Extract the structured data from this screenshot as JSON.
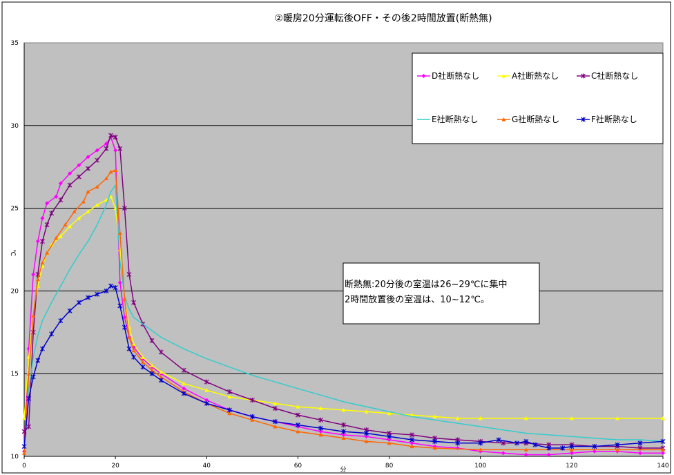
{
  "chart_data": {
    "type": "line",
    "title": "②暖房20分運転後OFF・その後2時間放置(断熱無)",
    "xlabel": "分",
    "ylabel": "℃",
    "xlim": [
      0,
      140
    ],
    "ylim": [
      10,
      35
    ],
    "xticks": [
      "0",
      "20",
      "40",
      "60",
      "80",
      "100",
      "120",
      "140"
    ],
    "yticks": [
      "10",
      "15",
      "20",
      "25",
      "30",
      "35"
    ],
    "grid": "horizontal",
    "legend_position": "top-right",
    "annotation": [
      "断熱無:20分後の室温は26~29℃に集中",
      "2時間放置後の室温は、10~12℃。"
    ],
    "background_color": "#c0c0c0",
    "series": [
      {
        "name": "D社断熱なし",
        "color": "#ff00ff",
        "marker": "diamond",
        "points": [
          [
            0,
            10.3
          ],
          [
            1,
            16.5
          ],
          [
            2,
            21
          ],
          [
            3,
            23
          ],
          [
            4,
            24.4
          ],
          [
            5,
            25.3
          ],
          [
            7,
            25.7
          ],
          [
            8,
            26.5
          ],
          [
            10,
            27.1
          ],
          [
            12,
            27.6
          ],
          [
            14,
            28.1
          ],
          [
            16,
            28.5
          ],
          [
            18,
            28.9
          ],
          [
            19,
            29.3
          ],
          [
            20,
            28.5
          ],
          [
            21,
            20.5
          ],
          [
            22,
            18.4
          ],
          [
            23,
            17.2
          ],
          [
            24,
            16.6
          ],
          [
            26,
            15.9
          ],
          [
            28,
            15.4
          ],
          [
            30,
            15
          ],
          [
            35,
            14.1
          ],
          [
            40,
            13.4
          ],
          [
            45,
            12.8
          ],
          [
            50,
            12.4
          ],
          [
            55,
            12.1
          ],
          [
            60,
            11.8
          ],
          [
            65,
            11.5
          ],
          [
            70,
            11.3
          ],
          [
            75,
            11.2
          ],
          [
            80,
            11
          ],
          [
            85,
            10.8
          ],
          [
            90,
            10.6
          ],
          [
            95,
            10.5
          ],
          [
            100,
            10.3
          ],
          [
            105,
            10.2
          ],
          [
            110,
            10.1
          ],
          [
            115,
            10.1
          ],
          [
            120,
            10.2
          ],
          [
            125,
            10.3
          ],
          [
            130,
            10.3
          ],
          [
            135,
            10.2
          ],
          [
            140,
            10.2
          ]
        ]
      },
      {
        "name": "A社断熱なし",
        "color": "#ffff00",
        "marker": "triangle",
        "points": [
          [
            0,
            12.3
          ],
          [
            1,
            16
          ],
          [
            2,
            18.5
          ],
          [
            3,
            20.3
          ],
          [
            4,
            21.5
          ],
          [
            5,
            22.3
          ],
          [
            6,
            22.8
          ],
          [
            8,
            23.3
          ],
          [
            10,
            23.9
          ],
          [
            12,
            24.4
          ],
          [
            14,
            24.8
          ],
          [
            16,
            25.2
          ],
          [
            18,
            25.5
          ],
          [
            19,
            25.7
          ],
          [
            20,
            25
          ],
          [
            21,
            22.5
          ],
          [
            22,
            19.5
          ],
          [
            23,
            17.8
          ],
          [
            24,
            16.8
          ],
          [
            26,
            16
          ],
          [
            28,
            15.5
          ],
          [
            30,
            15.1
          ],
          [
            35,
            14.4
          ],
          [
            40,
            14
          ],
          [
            45,
            13.6
          ],
          [
            50,
            13.4
          ],
          [
            55,
            13.2
          ],
          [
            60,
            13
          ],
          [
            65,
            12.9
          ],
          [
            70,
            12.8
          ],
          [
            75,
            12.7
          ],
          [
            80,
            12.6
          ],
          [
            85,
            12.5
          ],
          [
            90,
            12.4
          ],
          [
            95,
            12.3
          ],
          [
            100,
            12.3
          ],
          [
            110,
            12.3
          ],
          [
            120,
            12.3
          ],
          [
            130,
            12.3
          ],
          [
            140,
            12.3
          ]
        ]
      },
      {
        "name": "C社断熱なし",
        "color": "#800080",
        "marker": "star",
        "points": [
          [
            0,
            11.5
          ],
          [
            1,
            11.8
          ],
          [
            2,
            17.5
          ],
          [
            3,
            21
          ],
          [
            4,
            23
          ],
          [
            5,
            24
          ],
          [
            6,
            24.7
          ],
          [
            8,
            25.5
          ],
          [
            10,
            26.4
          ],
          [
            12,
            26.9
          ],
          [
            14,
            27.4
          ],
          [
            16,
            27.9
          ],
          [
            18,
            28.6
          ],
          [
            19,
            29.4
          ],
          [
            20,
            29.3
          ],
          [
            21,
            28.6
          ],
          [
            22,
            25
          ],
          [
            23,
            21
          ],
          [
            24,
            19.3
          ],
          [
            26,
            18
          ],
          [
            28,
            17
          ],
          [
            30,
            16.3
          ],
          [
            35,
            15.2
          ],
          [
            40,
            14.5
          ],
          [
            45,
            13.9
          ],
          [
            50,
            13.4
          ],
          [
            55,
            12.9
          ],
          [
            60,
            12.5
          ],
          [
            65,
            12.2
          ],
          [
            70,
            11.9
          ],
          [
            75,
            11.6
          ],
          [
            80,
            11.4
          ],
          [
            85,
            11.3
          ],
          [
            90,
            11.1
          ],
          [
            95,
            11
          ],
          [
            100,
            10.9
          ],
          [
            105,
            10.8
          ],
          [
            110,
            10.8
          ],
          [
            115,
            10.7
          ],
          [
            120,
            10.7
          ],
          [
            125,
            10.6
          ],
          [
            130,
            10.6
          ],
          [
            135,
            10.5
          ],
          [
            140,
            10.5
          ]
        ]
      },
      {
        "name": "E社断熱なし",
        "color": "#33cccc",
        "marker": "none",
        "points": [
          [
            0,
            10.5
          ],
          [
            1,
            14
          ],
          [
            2,
            16
          ],
          [
            3,
            17.3
          ],
          [
            4,
            18.2
          ],
          [
            6,
            19.3
          ],
          [
            8,
            20.3
          ],
          [
            10,
            21.3
          ],
          [
            12,
            22.2
          ],
          [
            14,
            23
          ],
          [
            16,
            24
          ],
          [
            18,
            25.2
          ],
          [
            19,
            26
          ],
          [
            20,
            26.4
          ],
          [
            21,
            21.8
          ],
          [
            22,
            19.7
          ],
          [
            23,
            18.9
          ],
          [
            24,
            18.4
          ],
          [
            26,
            18
          ],
          [
            28,
            17.6
          ],
          [
            30,
            17.2
          ],
          [
            35,
            16.5
          ],
          [
            40,
            15.9
          ],
          [
            45,
            15.4
          ],
          [
            50,
            14.9
          ],
          [
            55,
            14.5
          ],
          [
            60,
            14.1
          ],
          [
            65,
            13.7
          ],
          [
            70,
            13.3
          ],
          [
            75,
            13
          ],
          [
            80,
            12.7
          ],
          [
            85,
            12.4
          ],
          [
            90,
            12.2
          ],
          [
            95,
            12
          ],
          [
            100,
            11.8
          ],
          [
            105,
            11.6
          ],
          [
            110,
            11.4
          ],
          [
            115,
            11.3
          ],
          [
            120,
            11.2
          ],
          [
            125,
            11.1
          ],
          [
            130,
            11
          ],
          [
            135,
            11
          ],
          [
            140,
            10.9
          ]
        ]
      },
      {
        "name": "G社断熱なし",
        "color": "#ff6600",
        "marker": "triangle",
        "points": [
          [
            0,
            10.2
          ],
          [
            1,
            15
          ],
          [
            2,
            18.5
          ],
          [
            3,
            20.7
          ],
          [
            4,
            21.7
          ],
          [
            5,
            22.3
          ],
          [
            7,
            23.2
          ],
          [
            9,
            24
          ],
          [
            11,
            24.8
          ],
          [
            13,
            25.4
          ],
          [
            14,
            26
          ],
          [
            16,
            26.3
          ],
          [
            18,
            26.8
          ],
          [
            19,
            27.2
          ],
          [
            20,
            27.3
          ],
          [
            21,
            23.5
          ],
          [
            22,
            19.5
          ],
          [
            23,
            17.2
          ],
          [
            24,
            16.4
          ],
          [
            26,
            15.7
          ],
          [
            28,
            15.2
          ],
          [
            30,
            14.8
          ],
          [
            35,
            13.9
          ],
          [
            40,
            13.2
          ],
          [
            45,
            12.6
          ],
          [
            50,
            12.2
          ],
          [
            55,
            11.8
          ],
          [
            60,
            11.5
          ],
          [
            65,
            11.3
          ],
          [
            70,
            11.1
          ],
          [
            75,
            10.9
          ],
          [
            80,
            10.8
          ],
          [
            85,
            10.6
          ],
          [
            90,
            10.5
          ],
          [
            100,
            10.4
          ],
          [
            110,
            10.4
          ],
          [
            120,
            10.4
          ],
          [
            130,
            10.4
          ],
          [
            140,
            10.4
          ]
        ]
      },
      {
        "name": "F社断熱なし",
        "color": "#0000cc",
        "marker": "star",
        "points": [
          [
            0,
            10.6
          ],
          [
            1,
            13.5
          ],
          [
            2,
            14.8
          ],
          [
            3,
            15.8
          ],
          [
            4,
            16.5
          ],
          [
            6,
            17.4
          ],
          [
            8,
            18.2
          ],
          [
            10,
            18.8
          ],
          [
            12,
            19.3
          ],
          [
            14,
            19.6
          ],
          [
            16,
            19.8
          ],
          [
            18,
            20
          ],
          [
            19,
            20.3
          ],
          [
            20,
            20.2
          ],
          [
            21,
            19.1
          ],
          [
            22,
            17.8
          ],
          [
            23,
            16.5
          ],
          [
            24,
            16
          ],
          [
            26,
            15.4
          ],
          [
            28,
            15
          ],
          [
            30,
            14.6
          ],
          [
            35,
            13.8
          ],
          [
            40,
            13.2
          ],
          [
            45,
            12.8
          ],
          [
            50,
            12.4
          ],
          [
            55,
            12.1
          ],
          [
            60,
            11.9
          ],
          [
            65,
            11.7
          ],
          [
            70,
            11.5
          ],
          [
            75,
            11.4
          ],
          [
            80,
            11.2
          ],
          [
            85,
            11
          ],
          [
            90,
            10.9
          ],
          [
            95,
            10.8
          ],
          [
            100,
            10.8
          ],
          [
            104,
            11
          ],
          [
            108,
            10.8
          ],
          [
            110,
            10.9
          ],
          [
            112,
            10.7
          ],
          [
            115,
            10.5
          ],
          [
            118,
            10.5
          ],
          [
            120,
            10.6
          ],
          [
            125,
            10.6
          ],
          [
            130,
            10.7
          ],
          [
            135,
            10.8
          ],
          [
            140,
            10.9
          ]
        ]
      }
    ]
  }
}
